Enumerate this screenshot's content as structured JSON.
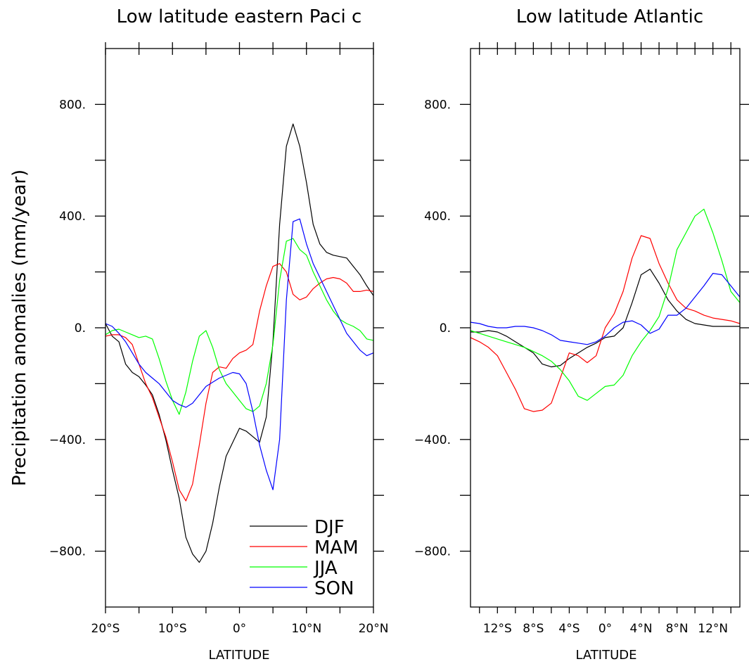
{
  "figure": {
    "ylabel": "Precipitation anomalies (mm/year)"
  },
  "chart_data": [
    {
      "type": "line",
      "title": "Low latitude eastern Paci   c",
      "xlabel": "LATITUDE",
      "ylabel": "Precipitation anomalies (mm/year)",
      "xlim": [
        -20,
        20
      ],
      "ylim": [
        -1000,
        1000
      ],
      "x_ticks": [
        -20,
        -10,
        0,
        10,
        20
      ],
      "x_tick_labels": [
        "20°S",
        "10°S",
        "0°",
        "10°N",
        "20°N"
      ],
      "x_minor_ticks": [
        -20,
        -15,
        -10,
        -5,
        0,
        5,
        10,
        15,
        20
      ],
      "y_ticks": [
        800,
        400,
        0,
        -400,
        -800
      ],
      "y_tick_labels": [
        "800.",
        "400.",
        "0.",
        "-400.",
        "-800."
      ],
      "y_minor_ticks": [
        800,
        600,
        400,
        200,
        0,
        -200,
        -400,
        -600,
        -800
      ],
      "grid": false,
      "legend": "bottom-right",
      "series": [
        {
          "name": "DJF",
          "color": "#000000",
          "x": [
            -20,
            -19,
            -18,
            -17,
            -16,
            -15,
            -14,
            -13,
            -12,
            -11,
            -10,
            -9,
            -8,
            -7,
            -6,
            -5,
            -4,
            -3,
            -2,
            -1,
            0,
            1,
            2,
            3,
            4,
            5,
            6,
            7,
            8,
            9,
            10,
            11,
            12,
            13,
            14,
            15,
            16,
            17,
            18,
            19,
            20
          ],
          "values": [
            15,
            -30,
            -50,
            -130,
            -160,
            -175,
            -205,
            -240,
            -310,
            -400,
            -510,
            -610,
            -750,
            -810,
            -840,
            -800,
            -700,
            -570,
            -460,
            -410,
            -360,
            -370,
            -390,
            -410,
            -320,
            -50,
            370,
            650,
            730,
            650,
            520,
            370,
            300,
            270,
            260,
            255,
            250,
            220,
            190,
            150,
            115
          ]
        },
        {
          "name": "MAM",
          "color": "#ff0000",
          "x": [
            -20,
            -19,
            -18,
            -17,
            -16,
            -15,
            -14,
            -13,
            -12,
            -11,
            -10,
            -9,
            -8,
            -7,
            -6,
            -5,
            -4,
            -3,
            -2,
            -1,
            0,
            1,
            2,
            3,
            4,
            5,
            6,
            7,
            8,
            9,
            10,
            11,
            12,
            13,
            14,
            15,
            16,
            17,
            18,
            19,
            20
          ],
          "values": [
            -30,
            -25,
            -25,
            -35,
            -60,
            -130,
            -200,
            -250,
            -320,
            -390,
            -480,
            -580,
            -620,
            -560,
            -420,
            -270,
            -160,
            -140,
            -145,
            -110,
            -90,
            -80,
            -60,
            60,
            150,
            220,
            230,
            200,
            120,
            100,
            110,
            140,
            160,
            175,
            180,
            175,
            160,
            130,
            130,
            135,
            130
          ]
        },
        {
          "name": "JJA",
          "color": "#00ff00",
          "x": [
            -20,
            -19,
            -18,
            -17,
            -16,
            -15,
            -14,
            -13,
            -12,
            -11,
            -10,
            -9,
            -8,
            -7,
            -6,
            -5,
            -4,
            -3,
            -2,
            -1,
            0,
            1,
            2,
            3,
            4,
            5,
            6,
            7,
            8,
            9,
            10,
            11,
            12,
            13,
            14,
            15,
            16,
            17,
            18,
            19,
            20
          ],
          "values": [
            -25,
            -10,
            -5,
            -15,
            -25,
            -35,
            -30,
            -40,
            -110,
            -190,
            -260,
            -310,
            -230,
            -120,
            -30,
            -10,
            -70,
            -150,
            -200,
            -230,
            -260,
            -290,
            -300,
            -280,
            -200,
            -60,
            170,
            310,
            320,
            280,
            260,
            200,
            150,
            100,
            60,
            30,
            15,
            5,
            -10,
            -40,
            -45
          ]
        },
        {
          "name": "SON",
          "color": "#0000ff",
          "x": [
            -20,
            -19,
            -18,
            -17,
            -16,
            -15,
            -14,
            -13,
            -12,
            -11,
            -10,
            -9,
            -8,
            -7,
            -6,
            -5,
            -4,
            -3,
            -2,
            -1,
            0,
            1,
            2,
            3,
            4,
            5,
            6,
            7,
            8,
            9,
            10,
            11,
            12,
            13,
            14,
            15,
            16,
            17,
            18,
            19,
            20
          ],
          "values": [
            15,
            5,
            -20,
            -50,
            -90,
            -130,
            -160,
            -180,
            -200,
            -230,
            -260,
            -275,
            -285,
            -270,
            -240,
            -210,
            -195,
            -180,
            -170,
            -160,
            -165,
            -200,
            -300,
            -420,
            -510,
            -580,
            -400,
            100,
            380,
            390,
            300,
            230,
            180,
            130,
            80,
            30,
            -20,
            -50,
            -80,
            -100,
            -90
          ]
        }
      ]
    },
    {
      "type": "line",
      "title": "Low latitude Atlantic",
      "xlabel": "LATITUDE",
      "ylabel": "",
      "xlim": [
        -15,
        15
      ],
      "ylim": [
        -1000,
        1000
      ],
      "x_ticks": [
        -12,
        -8,
        -4,
        0,
        4,
        8,
        12
      ],
      "x_tick_labels": [
        "12°S",
        "8°S",
        "4°S",
        "0°",
        "4°N",
        "8°N",
        "12°N"
      ],
      "x_minor_ticks": [
        -14,
        -12,
        -10,
        -8,
        -6,
        -4,
        -2,
        0,
        2,
        4,
        6,
        8,
        10,
        12,
        14
      ],
      "y_ticks": [
        800,
        400,
        0,
        -400,
        -800
      ],
      "y_tick_labels": [
        "800.",
        "400.",
        "0.",
        "-400.",
        "-800."
      ],
      "y_minor_ticks": [
        800,
        600,
        400,
        200,
        0,
        -200,
        -400,
        -600,
        -800
      ],
      "grid": false,
      "legend": "none",
      "series": [
        {
          "name": "DJF",
          "color": "#000000",
          "x": [
            -15,
            -14,
            -13,
            -12,
            -11,
            -10,
            -9,
            -8,
            -7,
            -6,
            -5,
            -4,
            -3,
            -2,
            -1,
            0,
            1,
            2,
            3,
            4,
            5,
            6,
            7,
            8,
            9,
            10,
            11,
            12,
            13,
            14,
            15
          ],
          "values": [
            -15,
            -15,
            -10,
            -15,
            -30,
            -50,
            -70,
            -90,
            -130,
            -140,
            -135,
            -110,
            -90,
            -70,
            -55,
            -35,
            -30,
            0,
            90,
            190,
            210,
            160,
            100,
            60,
            30,
            15,
            10,
            5,
            5,
            5,
            5
          ]
        },
        {
          "name": "MAM",
          "color": "#ff0000",
          "x": [
            -15,
            -14,
            -13,
            -12,
            -11,
            -10,
            -9,
            -8,
            -7,
            -6,
            -5,
            -4,
            -3,
            -2,
            -1,
            0,
            1,
            2,
            3,
            4,
            5,
            6,
            7,
            8,
            9,
            10,
            11,
            12,
            13,
            14,
            15
          ],
          "values": [
            -35,
            -50,
            -70,
            -100,
            -160,
            -220,
            -290,
            -300,
            -295,
            -270,
            -180,
            -90,
            -100,
            -125,
            -100,
            0,
            50,
            130,
            250,
            330,
            320,
            230,
            160,
            100,
            70,
            60,
            45,
            35,
            30,
            25,
            15
          ]
        },
        {
          "name": "JJA",
          "color": "#00ff00",
          "x": [
            -15,
            -14,
            -13,
            -12,
            -11,
            -10,
            -9,
            -8,
            -7,
            -6,
            -5,
            -4,
            -3,
            -2,
            -1,
            0,
            1,
            2,
            3,
            4,
            5,
            6,
            7,
            8,
            9,
            10,
            11,
            12,
            13,
            14,
            15
          ],
          "values": [
            -10,
            -20,
            -30,
            -40,
            -50,
            -60,
            -70,
            -85,
            -100,
            -120,
            -150,
            -190,
            -245,
            -260,
            -235,
            -210,
            -205,
            -170,
            -100,
            -50,
            -10,
            40,
            140,
            280,
            340,
            400,
            425,
            340,
            240,
            130,
            90
          ]
        },
        {
          "name": "SON",
          "color": "#0000ff",
          "x": [
            -15,
            -14,
            -13,
            -12,
            -11,
            -10,
            -9,
            -8,
            -7,
            -6,
            -5,
            -4,
            -3,
            -2,
            -1,
            0,
            1,
            2,
            3,
            4,
            5,
            6,
            7,
            8,
            9,
            10,
            11,
            12,
            13,
            14,
            15
          ],
          "values": [
            20,
            15,
            5,
            0,
            0,
            5,
            5,
            0,
            -10,
            -25,
            -45,
            -50,
            -55,
            -60,
            -50,
            -30,
            0,
            20,
            25,
            10,
            -20,
            -5,
            45,
            45,
            70,
            110,
            150,
            195,
            190,
            150,
            110
          ]
        }
      ]
    }
  ]
}
